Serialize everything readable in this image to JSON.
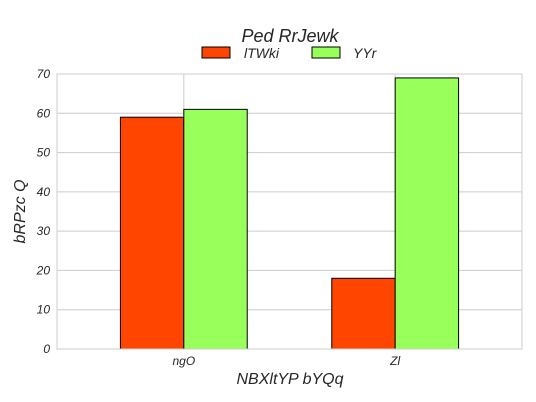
{
  "chart_data": {
    "type": "bar",
    "title": "Ped RrJewk",
    "xlabel": "NBXltYP bYQq",
    "ylabel": "bRPzc Q",
    "categories": [
      "ngO",
      "Zl"
    ],
    "series": [
      {
        "name": "lTWki",
        "values": [
          59,
          18
        ],
        "color": "#ff4500"
      },
      {
        "name": "YYr",
        "values": [
          61,
          69
        ],
        "color": "#99ff5a"
      }
    ],
    "ylim": [
      0,
      70
    ],
    "yticks": [
      0,
      10,
      20,
      30,
      40,
      50,
      60,
      70
    ],
    "grid": true,
    "legend_position": "top-center"
  }
}
